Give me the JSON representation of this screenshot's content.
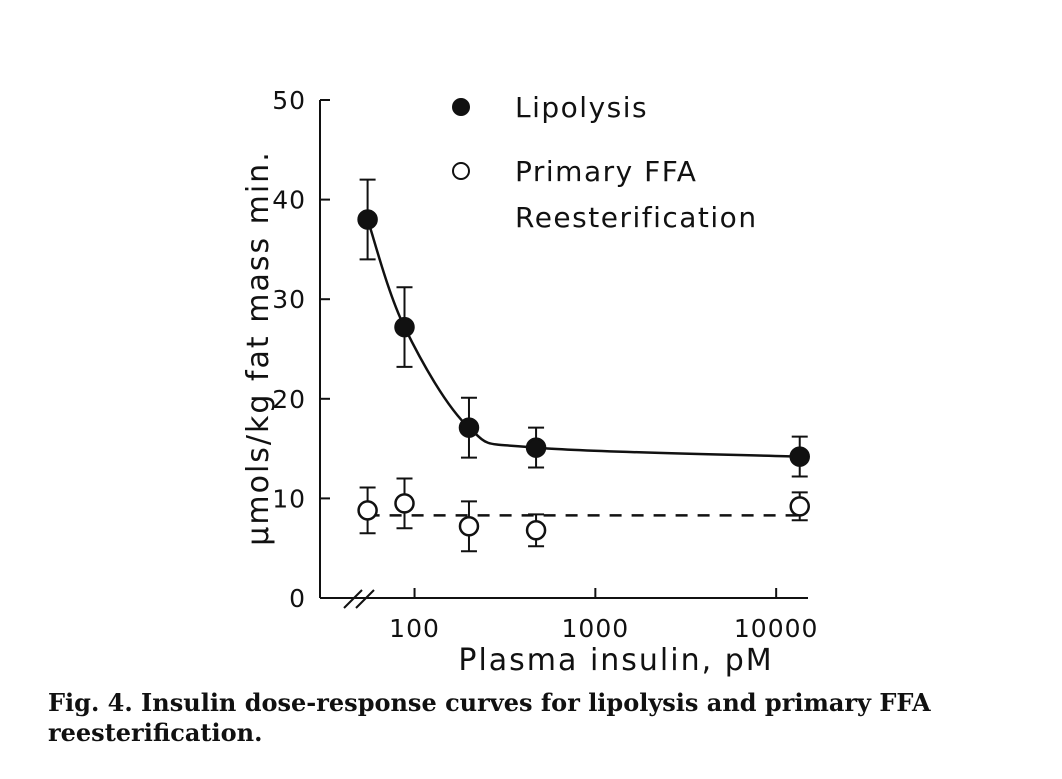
{
  "chart_data": {
    "type": "scatter",
    "xlabel": "Plasma insulin, pM",
    "ylabel": "μmols/kg fat mass min.",
    "xscale": "log",
    "xlim": [
      30,
      15000
    ],
    "ylim": [
      0,
      50
    ],
    "axis_break": "x",
    "xticks": [
      100,
      1000,
      10000
    ],
    "xtick_labels": [
      "100",
      "1000",
      "10000"
    ],
    "yticks": [
      0,
      10,
      20,
      30,
      40,
      50
    ],
    "ytick_labels": [
      "0",
      "10",
      "20",
      "30",
      "40",
      "50"
    ],
    "grid": false,
    "legend": "top-center",
    "series": [
      {
        "name": "Lipolysis",
        "marker": "filled-circle",
        "line": "solid",
        "x": [
          55,
          88,
          200,
          470,
          13500
        ],
        "y": [
          38,
          27.2,
          17.1,
          15.1,
          14.2
        ],
        "err": [
          4,
          4,
          3,
          2,
          2
        ]
      },
      {
        "name": "Primary FFA Reesterification",
        "legend_lines": [
          "Primary FFA",
          "Reesterification"
        ],
        "marker": "open-circle",
        "line": "dashed",
        "x": [
          55,
          88,
          200,
          470,
          13500
        ],
        "y": [
          8.8,
          9.5,
          7.2,
          6.8,
          9.2
        ],
        "err": [
          2.3,
          2.5,
          2.5,
          1.6,
          1.4
        ]
      }
    ]
  },
  "caption": "Fig. 4. Insulin dose-response curves for lipolysis and primary FFA reesterification.",
  "colors": {
    "ink": "#111111",
    "background": "#ffffff"
  }
}
